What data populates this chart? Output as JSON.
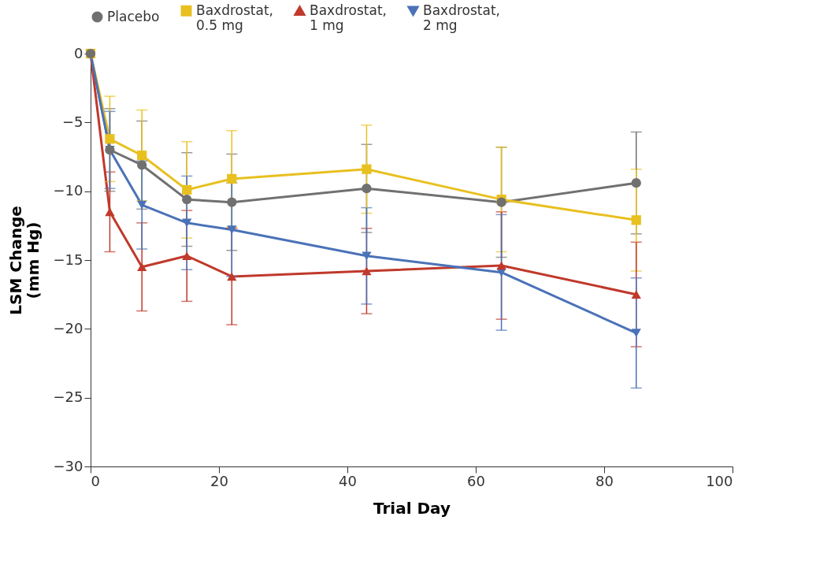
{
  "chart_data": {
    "type": "line",
    "xlabel": "Trial Day",
    "ylabel": "LSM Change (mm Hg)",
    "x": [
      0,
      3,
      8,
      15,
      22,
      43,
      64,
      85
    ],
    "xlim": [
      0,
      100
    ],
    "xticks": [
      0,
      20,
      40,
      60,
      80,
      100
    ],
    "ylim": [
      -30,
      0
    ],
    "yticks": [
      -30,
      -25,
      -20,
      -15,
      -10,
      -5,
      0
    ],
    "grid": false,
    "legend": "top",
    "line_style": "solid",
    "series": [
      {
        "name": "Placebo",
        "color": "#707070",
        "marker": "circle",
        "values": [
          0,
          -7,
          -8.1,
          -10.6,
          -10.8,
          -9.8,
          -10.8,
          -9.4
        ],
        "errors": [
          null,
          3,
          3.2,
          3.4,
          3.5,
          3.2,
          4,
          3.7
        ]
      },
      {
        "name": "Baxdrostat, 0.5 mg",
        "color": "#e8c020",
        "marker": "square",
        "values": [
          0,
          -6.2,
          -7.4,
          -9.9,
          -9.1,
          -8.4,
          -10.6,
          -12.1
        ],
        "errors": [
          null,
          3.1,
          3.3,
          3.5,
          3.5,
          3.2,
          3.8,
          3.7
        ]
      },
      {
        "name": "Baxdrostat, 1 mg",
        "color": "#c0392b",
        "marker": "triangle",
        "values": [
          0,
          -11.5,
          -15.5,
          -14.7,
          -16.2,
          -15.8,
          -15.4,
          -17.5
        ],
        "errors": [
          null,
          2.9,
          3.2,
          3.3,
          3.5,
          3.1,
          3.9,
          3.8
        ]
      },
      {
        "name": "Baxdrostat, 2 mg",
        "color": "#4a72b8",
        "marker": "triangle-down",
        "values": [
          0,
          -7,
          -11,
          -12.3,
          -12.8,
          -14.7,
          -15.9,
          -20.3
        ],
        "errors": [
          null,
          2.8,
          3.2,
          3.4,
          3.4,
          3.5,
          4.2,
          4
        ]
      }
    ]
  }
}
